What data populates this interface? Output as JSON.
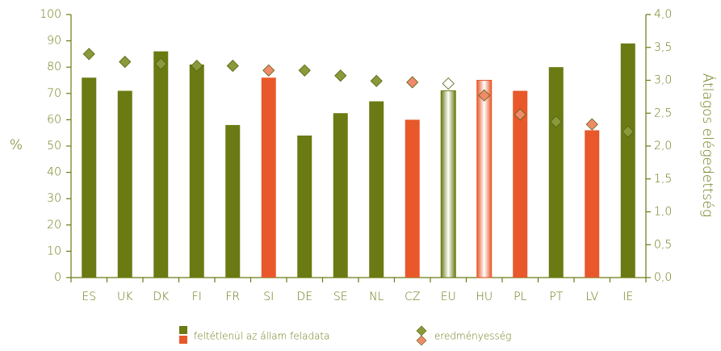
{
  "chart_data": {
    "type": "bar",
    "categories": [
      "ES",
      "UK",
      "DK",
      "FI",
      "FR",
      "SI",
      "DE",
      "SE",
      "NL",
      "CZ",
      "EU",
      "HU",
      "PL",
      "PT",
      "LV",
      "IE"
    ],
    "series": [
      {
        "name": "feltétlenül az állam feladata",
        "type": "bar",
        "values": [
          76,
          71,
          86,
          81,
          58,
          76,
          54,
          62.5,
          67,
          60,
          71,
          75,
          71,
          80,
          56,
          89
        ],
        "colors": [
          "#6b7a12",
          "#6b7a12",
          "#6b7a12",
          "#6b7a12",
          "#6b7a12",
          "#e8582a",
          "#6b7a12",
          "#6b7a12",
          "#6b7a12",
          "#e8582a",
          "#6b7a12",
          "#e8582a",
          "#e8582a",
          "#6b7a12",
          "#e8582a",
          "#6b7a12"
        ],
        "fill_styles": [
          "solid",
          "solid",
          "solid",
          "solid",
          "solid",
          "solid",
          "solid",
          "solid",
          "solid",
          "solid",
          "gradient",
          "gradient",
          "solid",
          "solid",
          "solid",
          "solid"
        ]
      },
      {
        "name": "eredményesség",
        "type": "diamond",
        "axis": "y2",
        "values": [
          3.4,
          3.28,
          3.25,
          3.22,
          3.22,
          3.15,
          3.15,
          3.07,
          2.99,
          2.97,
          2.95,
          2.77,
          2.48,
          2.37,
          2.33,
          2.22
        ],
        "colors": [
          "#8a9a3a",
          "#8a9a3a",
          "#8a9a3a",
          "#8a9a3a",
          "#8a9a3a",
          "#f08a6a",
          "#8a9a3a",
          "#8a9a3a",
          "#8a9a3a",
          "#f08a6a",
          "#8a9a3a",
          "#f08a6a",
          "#f08a6a",
          "#8a9a3a",
          "#f08a6a",
          "#8a9a3a"
        ],
        "fill_styles": [
          "solid",
          "solid",
          "solid",
          "solid",
          "solid",
          "solid",
          "solid",
          "solid",
          "solid",
          "solid",
          "gradient",
          "gradient",
          "solid",
          "solid",
          "solid",
          "solid"
        ]
      }
    ],
    "ylabel": "%",
    "y2label": "Átlagos elégedettség",
    "ylim": [
      0,
      100
    ],
    "yticks": [
      0,
      10,
      20,
      30,
      40,
      50,
      60,
      70,
      80,
      90,
      100
    ],
    "y2lim": [
      0,
      4
    ],
    "y2ticks": [
      {
        "value": 0,
        "label": "0,0"
      },
      {
        "value": 0.5,
        "label": "0,5"
      },
      {
        "value": 1,
        "label": "1,0"
      },
      {
        "value": 1.5,
        "label": "1,5"
      },
      {
        "value": 2,
        "label": "2,0"
      },
      {
        "value": 2.5,
        "label": "2,5"
      },
      {
        "value": 3,
        "label": "3,0"
      },
      {
        "value": 3.5,
        "label": "3,5"
      },
      {
        "value": 4,
        "label": "4,0"
      }
    ],
    "legend_colors": [
      "#6b7a12",
      "#e8582a"
    ],
    "legend_diamond_colors": [
      "#8a9a3a",
      "#f08a6a"
    ]
  }
}
